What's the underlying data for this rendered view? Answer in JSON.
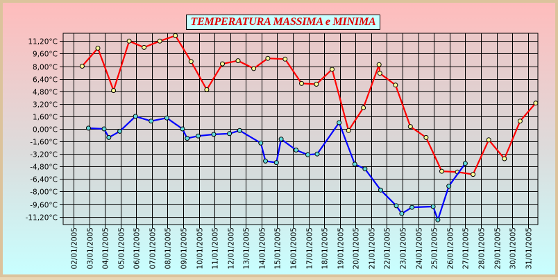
{
  "chart_data": {
    "type": "line",
    "title": "TEMPERATURA MASSIMA e MINIMA",
    "xlabel": "",
    "ylabel": "",
    "ylim": [
      -12.2,
      12.2
    ],
    "grid": true,
    "y_ticks": [
      "11,20°C",
      "9,60°C",
      "8,00°C",
      "6,40°C",
      "4,80°C",
      "3,20°C",
      "1,60°C",
      "0,00°C",
      "-1,60°C",
      "-3,20°C",
      "-4,80°C",
      "-6,40°C",
      "-8,00°C",
      "-9,60°C",
      "-11,20°C"
    ],
    "x_ticks": [
      "02/01/2005",
      "03/01/2005",
      "04/01/2005",
      "05/01/2005",
      "06/01/2005",
      "07/01/2005",
      "08/01/2005",
      "09/01/2005",
      "10/01/2005",
      "11/01/2005",
      "12/01/2005",
      "13/01/2005",
      "14/01/2005",
      "15/01/2005",
      "16/01/2005",
      "17/01/2005",
      "18/01/2005",
      "19/01/2005",
      "20/01/2005",
      "21/01/2005",
      "22/01/2005",
      "23/01/2005",
      "24/01/2005",
      "25/01/2005",
      "26/01/2005",
      "27/01/2005",
      "28/01/2005",
      "29/01/2005",
      "30/01/2005",
      "31/01/2005"
    ],
    "colors": {
      "max_line": "#ff0000",
      "min_line": "#0000ff",
      "max_marker": "#ffff99",
      "min_marker": "#66dddd",
      "grid": "#000000",
      "plot_bg": "#d0d0d0"
    },
    "series": [
      {
        "points": [
          [
            0.55,
            8.0
          ],
          [
            1.55,
            10.3
          ],
          [
            2.55,
            4.9
          ],
          [
            3.55,
            11.2
          ],
          [
            4.5,
            10.4
          ],
          [
            5.5,
            11.2
          ],
          [
            6.5,
            11.9
          ],
          [
            7.5,
            8.6
          ],
          [
            8.5,
            5.0
          ],
          [
            9.5,
            8.3
          ],
          [
            10.5,
            8.7
          ],
          [
            11.5,
            7.7
          ],
          [
            12.4,
            9.0
          ],
          [
            13.5,
            8.9
          ],
          [
            14.55,
            5.8
          ],
          [
            15.5,
            5.7
          ],
          [
            16.5,
            7.6
          ],
          [
            17.55,
            -0.2
          ],
          [
            18.5,
            2.7
          ],
          [
            19.5,
            8.2
          ],
          [
            19.55,
            7.1
          ],
          [
            20.55,
            5.6
          ],
          [
            21.5,
            0.3
          ],
          [
            22.5,
            -1.1
          ],
          [
            23.5,
            -5.4
          ],
          [
            24.5,
            -5.5
          ],
          [
            25.5,
            -5.8
          ],
          [
            26.5,
            -1.4
          ],
          [
            27.5,
            -3.8
          ],
          [
            28.5,
            1.0
          ],
          [
            29.5,
            3.3
          ]
        ]
      },
      {
        "points": [
          [
            0.95,
            0.1
          ],
          [
            1.95,
            0.0
          ],
          [
            2.25,
            -1.1
          ],
          [
            2.95,
            -0.3
          ],
          [
            3.95,
            1.6
          ],
          [
            4.95,
            1.0
          ],
          [
            5.95,
            1.4
          ],
          [
            6.95,
            0.0
          ],
          [
            7.25,
            -1.2
          ],
          [
            7.95,
            -0.9
          ],
          [
            8.95,
            -0.7
          ],
          [
            9.95,
            -0.6
          ],
          [
            10.6,
            -0.2
          ],
          [
            11.95,
            -1.8
          ],
          [
            12.25,
            -4.1
          ],
          [
            12.95,
            -4.3
          ],
          [
            13.25,
            -1.3
          ],
          [
            14.2,
            -2.7
          ],
          [
            14.95,
            -3.3
          ],
          [
            15.55,
            -3.2
          ],
          [
            16.95,
            0.8
          ],
          [
            17.95,
            -4.5
          ],
          [
            18.6,
            -5.1
          ],
          [
            19.6,
            -7.8
          ],
          [
            20.6,
            -9.8
          ],
          [
            20.95,
            -10.8
          ],
          [
            21.6,
            -10.0
          ],
          [
            22.95,
            -9.9
          ],
          [
            23.25,
            -11.6
          ],
          [
            23.95,
            -7.3
          ],
          [
            25.0,
            -4.4
          ]
        ]
      }
    ]
  }
}
